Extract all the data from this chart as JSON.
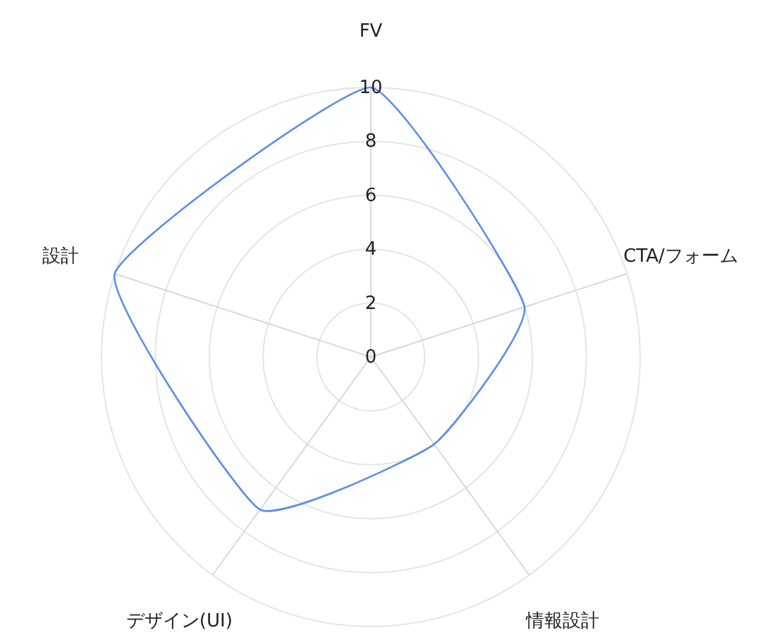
{
  "chart_data": {
    "type": "radar",
    "categories": [
      "FV",
      "CTA/フォーム",
      "情報設計",
      "デザイン(UI)",
      "設計"
    ],
    "series": [
      {
        "color": "#5b8cf0",
        "values": [
          10,
          6,
          4,
          7,
          10
        ]
      }
    ],
    "ylim": [
      0,
      10
    ],
    "yticks": [
      0,
      2,
      4,
      6,
      8,
      10
    ],
    "grid": true
  }
}
